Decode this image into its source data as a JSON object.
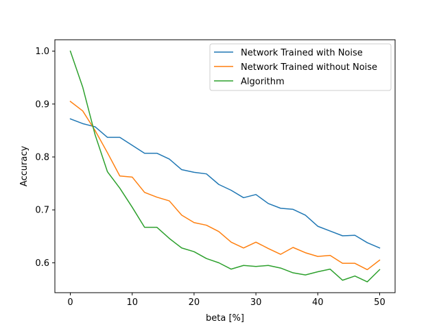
{
  "chart_data": {
    "type": "line",
    "title": "",
    "xlabel": "beta [%]",
    "ylabel": "Accuracy",
    "xlim": [
      -2.5,
      52.5
    ],
    "ylim": [
      0.5435,
      1.0215
    ],
    "xticks": [
      0,
      10,
      20,
      30,
      40,
      50
    ],
    "yticks": [
      0.6,
      0.7,
      0.8,
      0.9,
      1.0
    ],
    "xtick_labels": [
      "0",
      "10",
      "20",
      "30",
      "40",
      "50"
    ],
    "ytick_labels": [
      "0.6",
      "0.7",
      "0.8",
      "0.9",
      "1.0"
    ],
    "grid": false,
    "legend_position": "top-right",
    "x": [
      0,
      2,
      4,
      6,
      8,
      10,
      12,
      14,
      16,
      18,
      20,
      22,
      24,
      26,
      28,
      30,
      32,
      34,
      36,
      38,
      40,
      42,
      44,
      46,
      48,
      50
    ],
    "series": [
      {
        "name": "Network Trained with Noise",
        "color": "#1f77b4",
        "values": [
          0.872,
          0.863,
          0.857,
          0.837,
          0.837,
          0.822,
          0.807,
          0.807,
          0.796,
          0.776,
          0.771,
          0.768,
          0.748,
          0.737,
          0.723,
          0.729,
          0.712,
          0.703,
          0.701,
          0.69,
          0.669,
          0.66,
          0.651,
          0.652,
          0.638,
          0.628
        ]
      },
      {
        "name": "Network Trained without Noise",
        "color": "#ff7f0e",
        "values": [
          0.905,
          0.887,
          0.85,
          0.808,
          0.764,
          0.762,
          0.733,
          0.724,
          0.717,
          0.69,
          0.676,
          0.671,
          0.659,
          0.639,
          0.628,
          0.639,
          0.627,
          0.616,
          0.629,
          0.619,
          0.612,
          0.614,
          0.599,
          0.599,
          0.587,
          0.605
        ]
      },
      {
        "name": "Algorithm",
        "color": "#2ca02c",
        "values": [
          1.0,
          0.932,
          0.842,
          0.772,
          0.741,
          0.705,
          0.667,
          0.667,
          0.646,
          0.628,
          0.621,
          0.608,
          0.6,
          0.588,
          0.595,
          0.593,
          0.595,
          0.59,
          0.581,
          0.577,
          0.583,
          0.588,
          0.567,
          0.575,
          0.564,
          0.587
        ]
      }
    ]
  }
}
